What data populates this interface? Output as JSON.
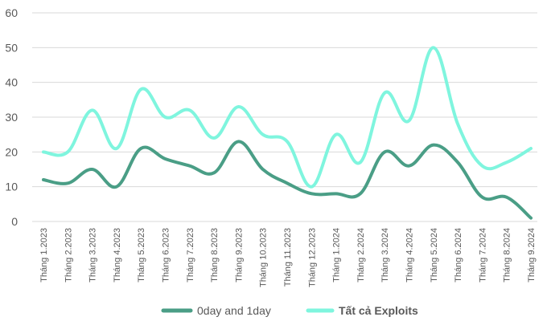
{
  "chart_data": {
    "type": "line",
    "categories": [
      "Tháng 1.2023",
      "Tháng 2.2023",
      "Tháng 3.2023",
      "Tháng 4.2023",
      "Tháng 5.2023",
      "Tháng 6.2023",
      "Tháng 7.2023",
      "Tháng 8.2023",
      "Tháng 9.2023",
      "Tháng 10.2023",
      "Tháng 11.2023",
      "Tháng 12.2023",
      "Tháng 1.2024",
      "Tháng 2.2024",
      "Tháng 3.2024",
      "Tháng 4.2024",
      "Tháng 5.2024",
      "Tháng 6.2024",
      "Tháng 7.2024",
      "Tháng 8.2024",
      "Tháng 9.2024"
    ],
    "series": [
      {
        "name": "0day and 1day",
        "color": "#4a9e86",
        "values": [
          12,
          11,
          15,
          10,
          21,
          18,
          16,
          14,
          23,
          15,
          11,
          8,
          8,
          8,
          20,
          16,
          22,
          17,
          7,
          7,
          1
        ]
      },
      {
        "name": "Tất cả Exploits",
        "color": "#7ff5de",
        "values": [
          20,
          20,
          32,
          21,
          38,
          30,
          32,
          24,
          33,
          25,
          23,
          10,
          25,
          17,
          37,
          29,
          50,
          28,
          16,
          17,
          21
        ]
      }
    ],
    "ylim": [
      0,
      60
    ],
    "yticks": [
      "0",
      "10",
      "20",
      "30",
      "40",
      "50",
      "60"
    ],
    "grid": true,
    "legend": "bottom",
    "smooth": true
  }
}
